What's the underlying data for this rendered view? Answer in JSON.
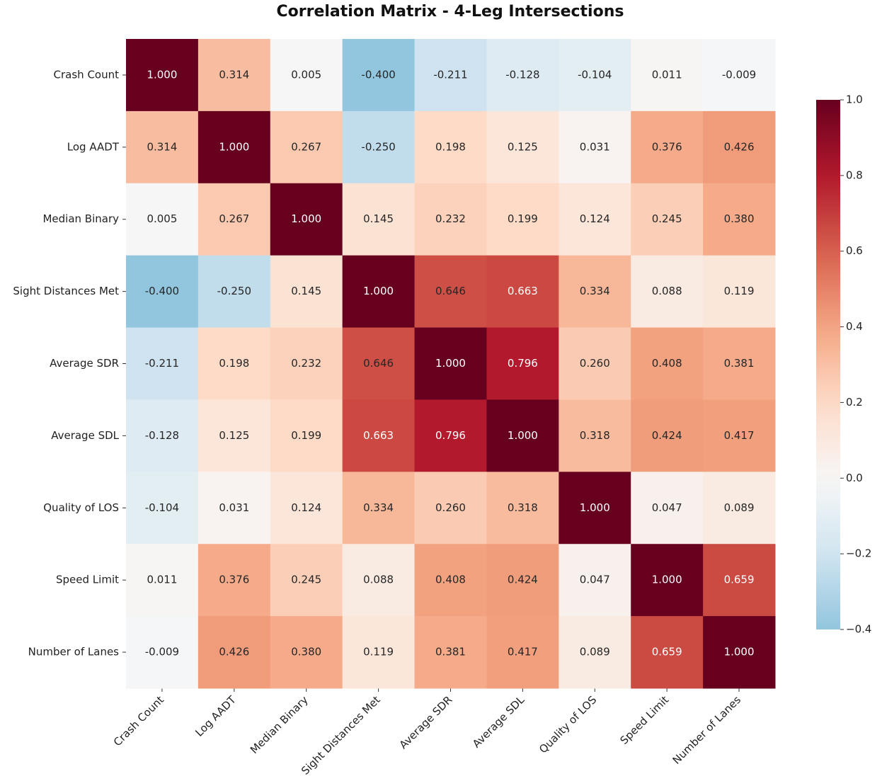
{
  "chart_data": {
    "type": "heatmap",
    "title": "Correlation Matrix - 4-Leg Intersections",
    "categories": [
      "Crash Count",
      "Log AADT",
      "Median Binary",
      "Sight Distances Met",
      "Average SDR",
      "Average SDL",
      "Quality of LOS",
      "Speed Limit",
      "Number of Lanes"
    ],
    "values": [
      [
        1,
        0.314,
        0.005,
        -0.4,
        -0.211,
        -0.128,
        -0.104,
        0.011,
        -0.009
      ],
      [
        0.314,
        1,
        0.267,
        -0.25,
        0.198,
        0.125,
        0.031,
        0.376,
        0.426
      ],
      [
        0.005,
        0.267,
        1,
        0.145,
        0.232,
        0.199,
        0.124,
        0.245,
        0.38
      ],
      [
        -0.4,
        -0.25,
        0.145,
        1,
        0.646,
        0.663,
        0.334,
        0.088,
        0.119
      ],
      [
        -0.211,
        0.198,
        0.232,
        0.646,
        1,
        0.796,
        0.26,
        0.408,
        0.381
      ],
      [
        -0.128,
        0.125,
        0.199,
        0.663,
        0.796,
        1,
        0.318,
        0.424,
        0.417
      ],
      [
        -0.104,
        0.031,
        0.124,
        0.334,
        0.26,
        0.318,
        1,
        0.047,
        0.089
      ],
      [
        0.011,
        0.376,
        0.245,
        0.088,
        0.408,
        0.424,
        0.047,
        1,
        0.659
      ],
      [
        -0.009,
        0.426,
        0.38,
        0.119,
        0.381,
        0.417,
        0.089,
        0.659,
        1
      ]
    ],
    "value_labels": [
      [
        "1.000",
        "0.314",
        "0.005",
        "-0.400",
        "-0.211",
        "-0.128",
        "-0.104",
        "0.011",
        "-0.009"
      ],
      [
        "0.314",
        "1.000",
        "0.267",
        "-0.250",
        "0.198",
        "0.125",
        "0.031",
        "0.376",
        "0.426"
      ],
      [
        "0.005",
        "0.267",
        "1.000",
        "0.145",
        "0.232",
        "0.199",
        "0.124",
        "0.245",
        "0.380"
      ],
      [
        "-0.400",
        "-0.250",
        "0.145",
        "1.000",
        "0.646",
        "0.663",
        "0.334",
        "0.088",
        "0.119"
      ],
      [
        "-0.211",
        "0.198",
        "0.232",
        "0.646",
        "1.000",
        "0.796",
        "0.260",
        "0.408",
        "0.381"
      ],
      [
        "-0.128",
        "0.125",
        "0.199",
        "0.663",
        "0.796",
        "1.000",
        "0.318",
        "0.424",
        "0.417"
      ],
      [
        "-0.104",
        "0.031",
        "0.124",
        "0.334",
        "0.260",
        "0.318",
        "1.000",
        "0.047",
        "0.089"
      ],
      [
        "0.011",
        "0.376",
        "0.245",
        "0.088",
        "0.408",
        "0.424",
        "0.047",
        "1.000",
        "0.659"
      ],
      [
        "-0.009",
        "0.426",
        "0.380",
        "0.119",
        "0.381",
        "0.417",
        "0.089",
        "0.659",
        "1.000"
      ]
    ],
    "colormap": "RdBu_r",
    "clim": [
      -0.4,
      1.0
    ],
    "cticks": [
      {
        "value": 1.0,
        "label": "1.0"
      },
      0.8,
      0.6,
      0.4,
      0.2,
      {
        "value": 0.0,
        "label": "0.0"
      },
      {
        "value": -0.2,
        "label": "−0.2"
      },
      {
        "value": -0.4,
        "label": "−0.4"
      }
    ]
  }
}
